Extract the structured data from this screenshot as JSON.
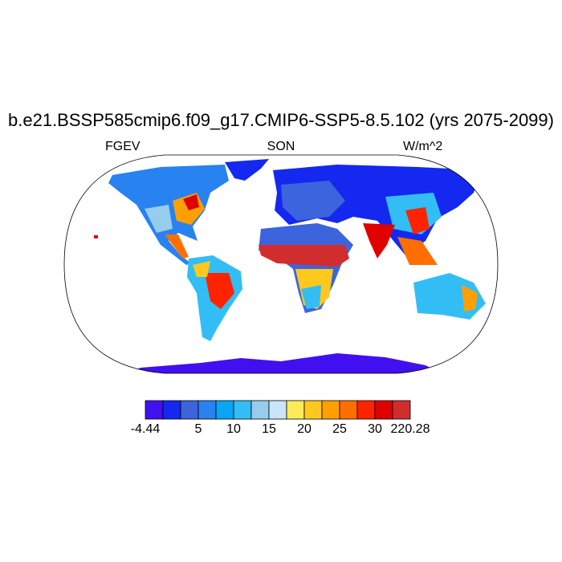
{
  "title": "b.e21.BSSP585cmip6.f09_g17.CMIP6-SSP5-8.5.102 (yrs 2075-2099)",
  "left_string": "FGEV",
  "center_string": "SON",
  "right_string": "W/m^2",
  "map": {
    "projection": "Robinson",
    "land_only": true,
    "ocean_fill": "#ffffff"
  },
  "colorbar": {
    "colors": [
      "#4010f0",
      "#1428f0",
      "#3c64dc",
      "#2882f0",
      "#0aa5f5",
      "#32bef5",
      "#96ccec",
      "#c8e6f8",
      "#ffeb5a",
      "#ffc81e",
      "#ffa000",
      "#ff6e00",
      "#ff2300",
      "#e10000",
      "#d22d2d"
    ],
    "labels": [
      {
        "text": "-4.44",
        "boundary": 0
      },
      {
        "text": "5",
        "boundary": 3
      },
      {
        "text": "10",
        "boundary": 5
      },
      {
        "text": "15",
        "boundary": 7
      },
      {
        "text": "20",
        "boundary": 9
      },
      {
        "text": "25",
        "boundary": 11
      },
      {
        "text": "30",
        "boundary": 13
      },
      {
        "text": "220.28",
        "boundary": 15
      }
    ]
  }
}
